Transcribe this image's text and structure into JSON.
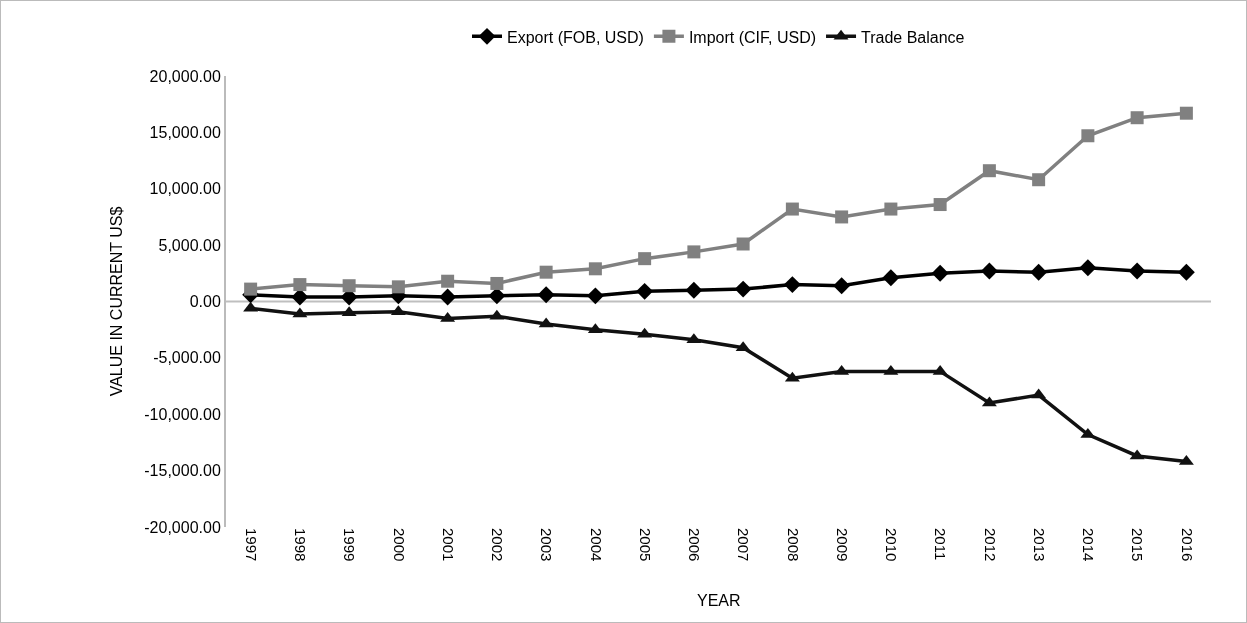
{
  "chart_data": {
    "type": "line",
    "xlabel": "YEAR",
    "ylabel": "VALUE IN CURRENT US$",
    "categories": [
      "1997",
      "1998",
      "1999",
      "2000",
      "2001",
      "2002",
      "2003",
      "2004",
      "2005",
      "2006",
      "2007",
      "2008",
      "2009",
      "2010",
      "2011",
      "2012",
      "2013",
      "2014",
      "2015",
      "2016"
    ],
    "series": [
      {
        "name": "Export (FOB, USD)",
        "color": "#000000",
        "marker": "diamond",
        "values": [
          600,
          400,
          400,
          500,
          400,
          500,
          600,
          500,
          900,
          1000,
          1100,
          1500,
          1400,
          2100,
          2500,
          2700,
          2600,
          3000,
          2700,
          2600
        ]
      },
      {
        "name": "Import (CIF, USD)",
        "color": "#808080",
        "marker": "square",
        "values": [
          1100,
          1500,
          1400,
          1300,
          1800,
          1600,
          2600,
          2900,
          3800,
          4400,
          5100,
          8200,
          7500,
          8200,
          8600,
          11600,
          10800,
          14700,
          16300,
          16700
        ]
      },
      {
        "name": "Trade Balance",
        "color": "#111111",
        "marker": "triangle",
        "values": [
          -600,
          -1100,
          -1000,
          -900,
          -1500,
          -1300,
          -2000,
          -2500,
          -2900,
          -3400,
          -4100,
          -6800,
          -6200,
          -6200,
          -6200,
          -9000,
          -8300,
          -11800,
          -13700,
          -14200
        ]
      }
    ],
    "ylim": [
      -20000,
      20000
    ],
    "yticks": [
      {
        "value": -20000,
        "label": "-20,000.00"
      },
      {
        "value": -15000,
        "label": "-15,000.00"
      },
      {
        "value": -10000,
        "label": "-10,000.00"
      },
      {
        "value": -5000,
        "label": "-5,000.00"
      },
      {
        "value": 0,
        "label": "0.00"
      },
      {
        "value": 5000,
        "label": "5,000.00"
      },
      {
        "value": 10000,
        "label": "10,000.00"
      },
      {
        "value": 15000,
        "label": "15,000.00"
      },
      {
        "value": 20000,
        "label": "20,000.00"
      }
    ],
    "ref_lines": [
      {
        "axis": "y",
        "value": 0,
        "color": "#bfbfbf"
      }
    ],
    "grid": false,
    "legend": "top",
    "line_style": "solid"
  }
}
